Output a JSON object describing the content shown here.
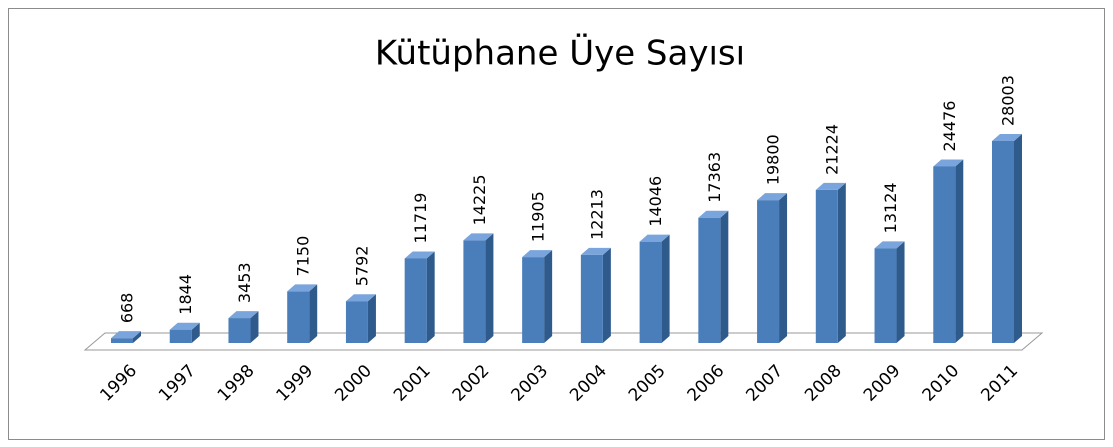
{
  "chart_data": {
    "type": "bar3d",
    "title": "Kütüphane Üye Sayısı",
    "categories": [
      "1996",
      "1997",
      "1998",
      "1999",
      "2000",
      "2001",
      "2002",
      "2003",
      "2004",
      "2005",
      "2006",
      "2007",
      "2008",
      "2009",
      "2010",
      "2011"
    ],
    "values": [
      668,
      1844,
      3453,
      7150,
      5792,
      11719,
      14225,
      11905,
      12213,
      14046,
      17363,
      19800,
      21224,
      13124,
      24476,
      28003
    ],
    "color": "#4a7ebb"
  }
}
